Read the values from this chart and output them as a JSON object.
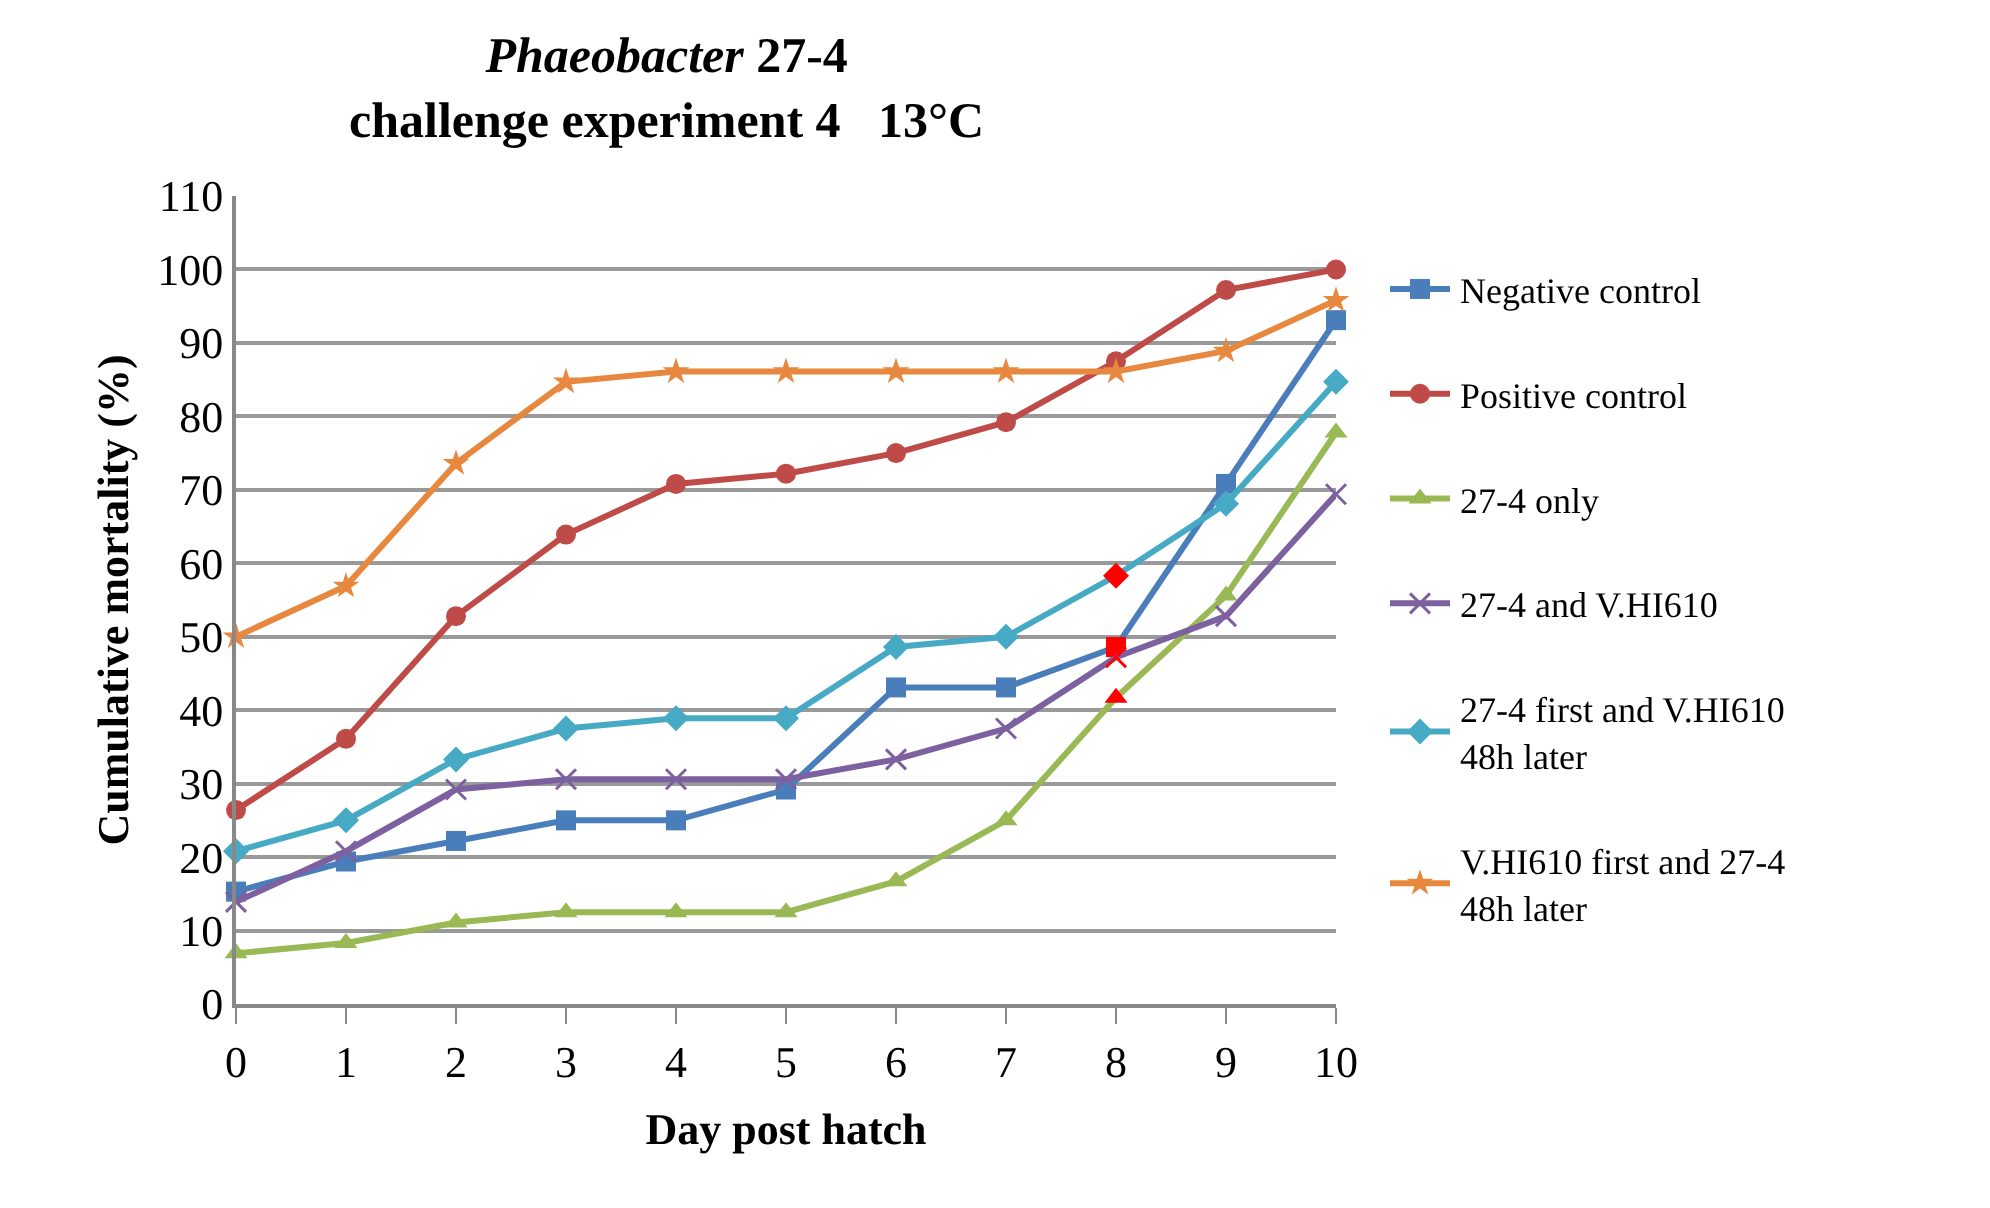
{
  "chart_data": {
    "type": "line",
    "title": "Phaeobacter 27-4\nchallenge experiment 4   13°C",
    "xlabel": "Day post hatch",
    "ylabel": "Cumulative mortality (%)",
    "x": [
      0,
      1,
      2,
      3,
      4,
      5,
      6,
      7,
      8,
      9,
      10
    ],
    "xlim": [
      0,
      10
    ],
    "xticks": [
      0,
      1,
      2,
      3,
      4,
      5,
      6,
      7,
      8,
      9,
      10
    ],
    "ylim": [
      0,
      110
    ],
    "yticks": [
      0,
      10,
      20,
      30,
      40,
      50,
      60,
      70,
      80,
      90,
      100,
      110
    ],
    "grid": "y",
    "legend": "right",
    "line_style": "solid",
    "series": [
      {
        "name": "Negative control",
        "color": "#4a7ebb",
        "marker": "square",
        "values": [
          15.3,
          19.4,
          22.2,
          25,
          25,
          29.2,
          43.1,
          43.1,
          48.6,
          70.8,
          93.1
        ],
        "colors": [
          "#4a7ebb",
          "#4a7ebb",
          "#4a7ebb",
          "#4a7ebb",
          "#4a7ebb",
          "#4a7ebb",
          "#4a7ebb",
          "#4a7ebb",
          "#ff0000",
          "#4a7ebb",
          "#4a7ebb"
        ]
      },
      {
        "name": "Positive control",
        "color": "#be4b48",
        "marker": "circle",
        "values": [
          26.4,
          36.1,
          52.8,
          63.9,
          70.8,
          72.2,
          75,
          79.2,
          87.5,
          97.2,
          100
        ]
      },
      {
        "name": "27-4 only",
        "color": "#98b954",
        "marker": "triangle",
        "values": [
          6.9,
          8.3,
          11.1,
          12.5,
          12.5,
          12.5,
          16.7,
          25,
          41.7,
          55.6,
          77.8
        ],
        "colors": [
          "#98b954",
          "#98b954",
          "#98b954",
          "#98b954",
          "#98b954",
          "#98b954",
          "#98b954",
          "#98b954",
          "#ff0000",
          "#98b954",
          "#98b954"
        ]
      },
      {
        "name": "27-4 and V.HI610",
        "color": "#7d60a0",
        "marker": "cross",
        "values": [
          13.9,
          20.8,
          29.2,
          30.6,
          30.6,
          30.6,
          33.3,
          37.5,
          47.2,
          52.8,
          69.4
        ],
        "colors": [
          "#7d60a0",
          "#7d60a0",
          "#7d60a0",
          "#7d60a0",
          "#7d60a0",
          "#7d60a0",
          "#7d60a0",
          "#7d60a0",
          "#ff0000",
          "#7d60a0",
          "#7d60a0"
        ]
      },
      {
        "name": "27-4 first and V.HI610 48h later",
        "color": "#46aac5",
        "marker": "diamond",
        "values": [
          20.8,
          25,
          33.3,
          37.5,
          38.9,
          38.9,
          48.6,
          50,
          58.3,
          68.1,
          84.7
        ],
        "colors": [
          "#46aac5",
          "#46aac5",
          "#46aac5",
          "#46aac5",
          "#46aac5",
          "#46aac5",
          "#46aac5",
          "#46aac5",
          "#ff0000",
          "#46aac5",
          "#46aac5"
        ]
      },
      {
        "name": "V.HI610 first and 27-4 48h later",
        "color": "#e8883e",
        "marker": "star",
        "values": [
          50,
          56.9,
          73.6,
          84.7,
          86.1,
          86.1,
          86.1,
          86.1,
          86.1,
          88.9,
          95.8
        ]
      }
    ]
  }
}
